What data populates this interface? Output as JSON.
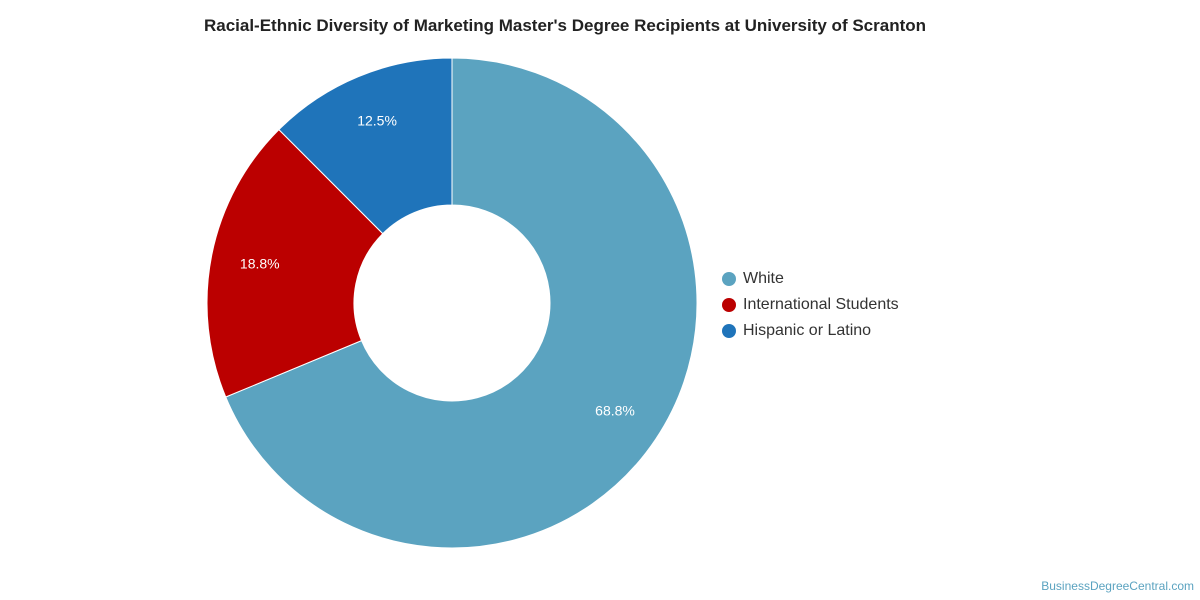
{
  "chart_data": {
    "type": "pie",
    "variant": "donut",
    "title": "Racial-Ethnic Diversity of Marketing Master's Degree Recipients at University of Scranton",
    "slices": [
      {
        "label": "White",
        "value": 68.8,
        "value_label": "68.8%",
        "color": "#5ba3c0"
      },
      {
        "label": "International Students",
        "value": 18.8,
        "value_label": "18.8%",
        "color": "#bb0000"
      },
      {
        "label": "Hispanic or Latino",
        "value": 12.5,
        "value_label": "12.5%",
        "color": "#1f74ba"
      }
    ],
    "legend_position": "right"
  },
  "source": "BusinessDegreeCentral.com"
}
